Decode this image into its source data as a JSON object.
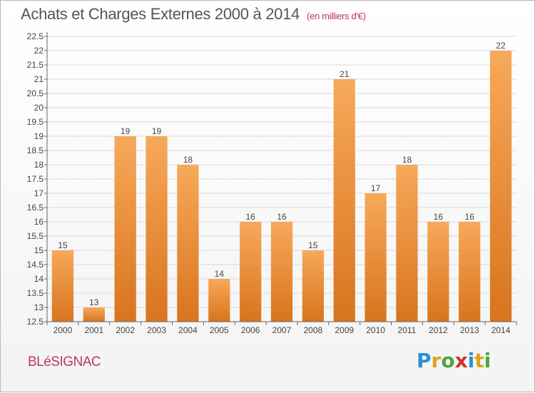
{
  "title": "Achats et Charges Externes 2000 à 2014",
  "subtitle": "(en milliers d'€)",
  "commune": "BLéSIGNAC",
  "brand": {
    "letters": [
      "P",
      "r",
      "o",
      "x",
      "i",
      "t",
      "i"
    ],
    "colors": [
      "#2b8fd6",
      "#e2a21c",
      "#48a83c",
      "#d2312f",
      "#2b8fd6",
      "#e2a21c",
      "#48a83c"
    ]
  },
  "colors": {
    "bar_top": "#f7a95a",
    "bar_bottom": "#d8741e",
    "grid": "#d9d9d9",
    "axis": "#666666",
    "text": "#444444"
  },
  "chart_data": {
    "type": "bar",
    "categories": [
      "2000",
      "2001",
      "2002",
      "2003",
      "2004",
      "2005",
      "2006",
      "2007",
      "2008",
      "2009",
      "2010",
      "2011",
      "2012",
      "2013",
      "2014"
    ],
    "values": [
      15,
      13,
      19,
      19,
      18,
      14,
      16,
      16,
      15,
      21,
      17,
      18,
      16,
      16,
      22
    ],
    "value_labels": [
      "15",
      "13",
      "19",
      "19",
      "18",
      "14",
      "16",
      "16",
      "15",
      "21",
      "17",
      "18",
      "16",
      "16",
      "22"
    ],
    "yticks": [
      "12.5",
      "13",
      "13.5",
      "14",
      "14.5",
      "15",
      "15.5",
      "16",
      "16.5",
      "17",
      "17.5",
      "18",
      "18.5",
      "19",
      "19.5",
      "20",
      "20.5",
      "21",
      "21.5",
      "22",
      "22.5"
    ],
    "ylim": [
      12.5,
      22.5
    ],
    "grid": true
  }
}
